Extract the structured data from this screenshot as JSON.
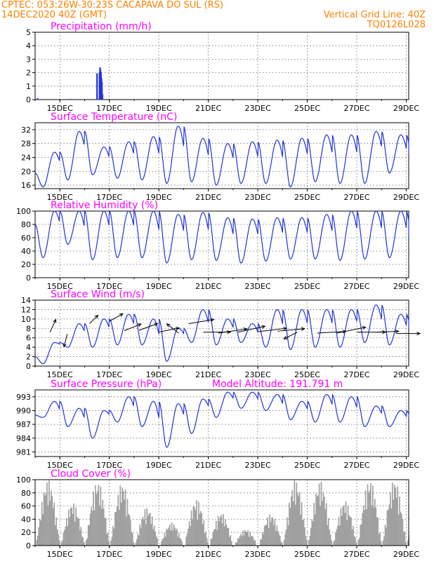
{
  "header": {
    "line1_left": "CPTEC:   053:26W-30:23S   CACAPAVA DO SUL (RS)",
    "line2_left": "14DEC2020 40Z (GMT)",
    "line2_right": "Vertical Grid Line: 40Z",
    "line3_right": "TQ0126L028"
  },
  "colors": {
    "header_text": "#ff8000",
    "panel_title": "#ff00ff",
    "series_line": "#2233dd",
    "cloud_fill": "#a0a0a0",
    "wind_arrow": "#000000"
  },
  "x_axis": {
    "tick_labels": [
      "15DEC",
      "17DEC",
      "19DEC",
      "21DEC",
      "23DEC",
      "25DEC",
      "27DEC",
      "29DEC"
    ],
    "tick_days": [
      1,
      3,
      5,
      7,
      9,
      11,
      13,
      15
    ]
  },
  "chart_data": [
    {
      "type": "bar",
      "title": "Precipitation (mm/h)",
      "ylim": [
        0,
        5
      ],
      "yticks": [
        0,
        1,
        2,
        3,
        4,
        5
      ],
      "ytick_labels": [
        "0",
        "1",
        "2",
        "3",
        "4",
        "5"
      ],
      "x_days": [
        0.1,
        1.4,
        2.5,
        2.6,
        2.62,
        2.64,
        2.66,
        2.68,
        2.7,
        2.72
      ],
      "values": [
        0.1,
        0.05,
        1.95,
        2.0,
        2.4,
        2.2,
        2.0,
        1.6,
        1.3,
        0.4
      ]
    },
    {
      "type": "line",
      "title": "Surface Temperature (nC)",
      "ylim": [
        15,
        34
      ],
      "yticks": [
        16,
        20,
        24,
        28,
        32
      ],
      "ytick_labels": [
        "16",
        "20",
        "24",
        "28",
        "32"
      ],
      "min_vals": [
        15.5,
        17.5,
        19,
        18,
        17.5,
        16.5,
        17,
        16,
        16.5,
        16.5,
        15.5,
        17,
        16.5,
        16.5,
        19.5
      ],
      "max_vals": [
        25.5,
        31.5,
        27,
        28.5,
        30,
        33,
        29.5,
        28,
        28.5,
        29,
        29.5,
        30.5,
        30.5,
        31.5,
        30.5
      ],
      "start_value": 19.5,
      "end_value": 25
    },
    {
      "type": "line",
      "title": "Relative Humidity (%)",
      "ylim": [
        0,
        100
      ],
      "yticks": [
        0,
        20,
        40,
        60,
        80,
        100
      ],
      "ytick_labels": [
        "0",
        "20",
        "40",
        "60",
        "80",
        "100"
      ],
      "min_vals": [
        30,
        50,
        27,
        30,
        30,
        22,
        27,
        26,
        22,
        25,
        28,
        28,
        26,
        28,
        30
      ],
      "max_vals": [
        100,
        100,
        100,
        100,
        100,
        95,
        98,
        90,
        88,
        90,
        90,
        95,
        100,
        100,
        100
      ],
      "start_value": 80,
      "end_value": 60
    },
    {
      "type": "line",
      "title": "Surface Wind (m/s)",
      "ylim": [
        0,
        14
      ],
      "yticks": [
        0,
        2,
        4,
        6,
        8,
        10,
        12,
        14
      ],
      "ytick_labels": [
        "0",
        "2",
        "4",
        "6",
        "8",
        "10",
        "12",
        "14"
      ],
      "min_vals": [
        0.5,
        4,
        4,
        4.5,
        4.5,
        1,
        5,
        4.5,
        5,
        4,
        3.5,
        4,
        4,
        5,
        4.5
      ],
      "max_vals": [
        5,
        9,
        10,
        11,
        10,
        8,
        12,
        10,
        9,
        12,
        12,
        12,
        12,
        13,
        11
      ],
      "start_value": 2,
      "end_value": 8
    },
    {
      "type": "line",
      "title": "Surface Pressure (hPa)",
      "annotation": "Model Altitude: 191.791 m",
      "ylim": [
        980,
        994.5
      ],
      "yticks": [
        981,
        984,
        987,
        990,
        993
      ],
      "ytick_labels": [
        "981",
        "984",
        "987",
        "990",
        "993"
      ],
      "min_vals": [
        988.5,
        986.5,
        984,
        987.5,
        986.5,
        982,
        985,
        988.5,
        990.5,
        990,
        988,
        987.5,
        987.5,
        986.5,
        986.5
      ],
      "max_vals": [
        992,
        990.5,
        990,
        993,
        992,
        991.5,
        992.5,
        994,
        994,
        993.5,
        992,
        993.5,
        993,
        991,
        990
      ],
      "start_value": 989,
      "end_value": 988.5
    },
    {
      "type": "area",
      "title": "Cloud Cover (%)",
      "ylim": [
        0,
        100
      ],
      "yticks": [
        0,
        20,
        40,
        60,
        80,
        100
      ],
      "ytick_labels": [
        "0",
        "20",
        "40",
        "60",
        "80",
        "100"
      ],
      "day_peaks": [
        100,
        65,
        98,
        95,
        58,
        35,
        70,
        50,
        25,
        48,
        100,
        98,
        68,
        100,
        100
      ]
    }
  ]
}
